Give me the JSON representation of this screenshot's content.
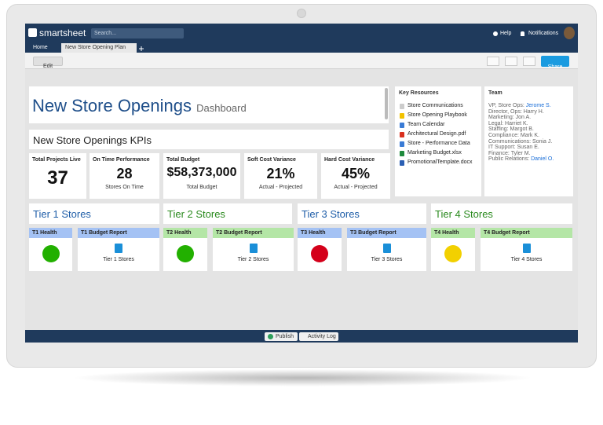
{
  "header": {
    "logo": "smartsheet",
    "search": "Search...",
    "help": "Help",
    "notifications": "Notifications"
  },
  "tabs": [
    "Home",
    "New Store Opening Plan"
  ],
  "toolbar": {
    "edit": "Edit",
    "share": "Share"
  },
  "dashboard": {
    "title": "New Store Openings",
    "subtitle": "Dashboard"
  },
  "kpi_title": "New Store Openings KPIs",
  "kpis": [
    {
      "label": "Total Projects Live",
      "value": "37"
    },
    {
      "label": "On Time Performance",
      "value": "28",
      "caption": "Stores On Time"
    },
    {
      "label": "Total Budget",
      "value": "$58,373,000",
      "caption": "Total Budget"
    },
    {
      "label": "Soft Cost Variance",
      "value": "21%",
      "caption": "Actual - Projected"
    },
    {
      "label": "Hard Cost Variance",
      "value": "45%",
      "caption": "Actual - Projected"
    }
  ],
  "resources": {
    "title": "Key Resources",
    "items": [
      {
        "name": "Store Communications",
        "color": "#cccccc"
      },
      {
        "name": "Store Opening Playbook",
        "color": "#f2c200"
      },
      {
        "name": "Team Calendar",
        "color": "#3a7bd5"
      },
      {
        "name": "Architectural Design.pdf",
        "color": "#d9301e"
      },
      {
        "name": "Store - Performance Data",
        "color": "#3a7bd5"
      },
      {
        "name": "Marketing Budget.xlsx",
        "color": "#1e8a3c"
      },
      {
        "name": "PromotionalTemplate.docx",
        "color": "#2b5fb3"
      }
    ]
  },
  "team": {
    "title": "Team",
    "members": [
      {
        "role": "VP, Store Ops:",
        "name": "Jerome S.",
        "color": "#1a6ed8"
      },
      {
        "role": "Director, Ops:",
        "name": "Harry H."
      },
      {
        "role": "Marketing:",
        "name": "Jon A."
      },
      {
        "role": "Legal:",
        "name": "Harriet K."
      },
      {
        "role": "Staffing:",
        "name": "Margot B."
      },
      {
        "role": "Compliance:",
        "name": "Mark K."
      },
      {
        "role": "Communications:",
        "name": "Sonia J."
      },
      {
        "role": "IT Support:",
        "name": "Susan E."
      },
      {
        "role": "Finance:",
        "name": "Tyler M."
      },
      {
        "role": "Public Relations:",
        "name": "Daniel O.",
        "color": "#1a6ed8"
      }
    ]
  },
  "tiers": [
    {
      "title": "Tier 1 Stores",
      "title_color": "#1f5ea8",
      "header_color": "#a4c2f4",
      "health_label": "T1 Health",
      "status_color": "#22b000",
      "report_label": "T1 Budget Report",
      "report_link": "Tier 1 Stores"
    },
    {
      "title": "Tier 2 Stores",
      "title_color": "#2a8a1e",
      "header_color": "#b4e6a6",
      "health_label": "T2 Health",
      "status_color": "#22b000",
      "report_label": "T2 Budget Report",
      "report_link": "Tier 2 Stores"
    },
    {
      "title": "Tier 3 Stores",
      "title_color": "#1f5ea8",
      "header_color": "#a4c2f4",
      "health_label": "T3 Health",
      "status_color": "#d4001a",
      "report_label": "T3 Budget Report",
      "report_link": "Tier 3 Stores"
    },
    {
      "title": "Tier 4 Stores",
      "title_color": "#2a8a1e",
      "header_color": "#b4e6a6",
      "health_label": "T4 Health",
      "status_color": "#f2d000",
      "report_label": "T4 Budget Report",
      "report_link": "Tier 4 Stores"
    }
  ],
  "footer": {
    "publish": "Publish",
    "activity": "Activity Log"
  }
}
